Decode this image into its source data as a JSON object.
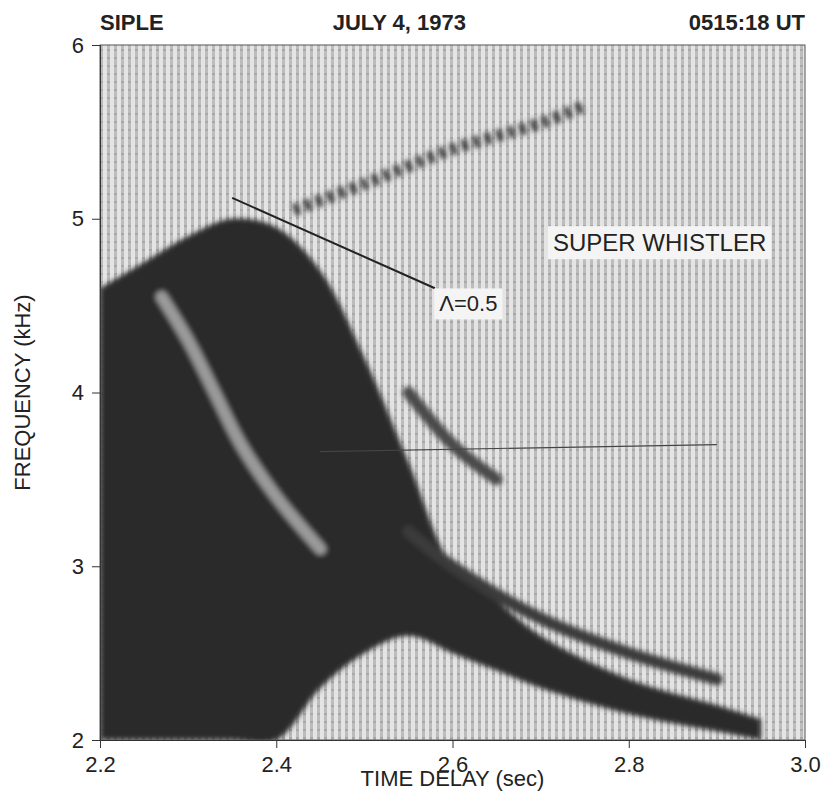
{
  "chart_data": {
    "type": "spectrogram",
    "header": [
      "SIPLE",
      "JULY 4, 1973",
      "0515:18 UT"
    ],
    "x_label": "TIME DELAY (sec)",
    "y_label": "FREQUENCY (kHz)",
    "xlim": [
      2.2,
      3.0
    ],
    "ylim": [
      2,
      6
    ],
    "xticks": [
      2.2,
      2.4,
      2.6,
      2.8,
      {
        "value": 3,
        "label": "3.0"
      }
    ],
    "yticks": [
      2,
      3,
      4,
      5,
      6
    ],
    "grid": false,
    "series": [
      {
        "type": "area",
        "color": "#2b2b2b",
        "x": [
          2.2,
          2.25,
          2.3,
          2.35,
          2.4,
          2.45,
          2.5,
          2.55,
          2.6,
          2.65,
          2.7,
          2.8,
          2.9,
          2.95
        ],
        "y_low": [
          2.0,
          2.0,
          2.0,
          2.0,
          2.0,
          2.3,
          2.5,
          2.6,
          2.5,
          2.4,
          2.3,
          2.15,
          2.05,
          2.0
        ],
        "values": [
          4.6,
          4.75,
          4.9,
          5.0,
          4.95,
          4.7,
          4.2,
          3.6,
          3.0,
          2.8,
          2.6,
          2.35,
          2.2,
          2.12
        ]
      },
      {
        "type": "line",
        "color": "#9a9a9a",
        "line_style": "solid",
        "x": [
          2.27,
          2.3,
          2.33,
          2.36,
          2.4,
          2.45
        ],
        "values": [
          4.55,
          4.3,
          4.0,
          3.7,
          3.4,
          3.1
        ]
      },
      {
        "type": "line",
        "color": "#3a3a3a",
        "line_style": "dotted",
        "x": [
          2.42,
          2.5,
          2.6,
          2.7,
          2.75
        ],
        "values": [
          5.05,
          5.2,
          5.4,
          5.55,
          5.65
        ]
      },
      {
        "type": "line",
        "color": "#3a3a3a",
        "line_style": "solid",
        "x": [
          2.55,
          2.6,
          2.7,
          2.8,
          2.9
        ],
        "values": [
          3.2,
          3.0,
          2.7,
          2.5,
          2.35
        ]
      },
      {
        "type": "line",
        "color": "#4a4a4a",
        "line_style": "solid",
        "x": [
          2.55,
          2.6,
          2.65
        ],
        "values": [
          4.0,
          3.7,
          3.5
        ]
      }
    ],
    "annotations": [
      {
        "text": "SUPER WHISTLER",
        "x": 2.835,
        "y": 4.85
      },
      {
        "text": "Λ=0.5",
        "x": 2.585,
        "y": 4.5,
        "line_x": [
          2.35,
          2.58
        ],
        "line_y": [
          5.12,
          4.6
        ]
      },
      {
        "line_x": [
          2.45,
          2.9
        ],
        "line_y": [
          3.66,
          3.7
        ]
      }
    ]
  }
}
